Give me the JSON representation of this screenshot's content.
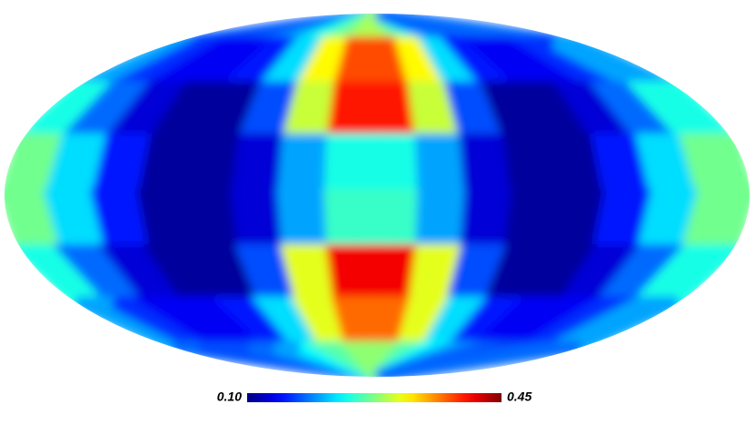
{
  "chart_data": {
    "type": "heatmap",
    "projection": "mollweide",
    "colormap": "jet",
    "clim": [
      {
        "value": 0.1,
        "label": "0.10"
      },
      {
        "value": 0.45,
        "label": "0.45"
      }
    ],
    "values": [
      [
        0.18,
        0.17,
        0.17,
        0.18,
        0.2,
        0.24,
        0.27,
        0.29,
        0.29,
        0.27,
        0.24,
        0.2,
        0.18,
        0.17,
        0.17,
        0.18
      ],
      [
        0.2,
        0.16,
        0.14,
        0.14,
        0.15,
        0.22,
        0.32,
        0.38,
        0.38,
        0.32,
        0.22,
        0.15,
        0.14,
        0.14,
        0.16,
        0.2
      ],
      [
        0.24,
        0.18,
        0.13,
        0.11,
        0.11,
        0.17,
        0.3,
        0.4,
        0.4,
        0.3,
        0.17,
        0.11,
        0.11,
        0.13,
        0.18,
        0.24
      ],
      [
        0.27,
        0.22,
        0.15,
        0.11,
        0.11,
        0.13,
        0.2,
        0.24,
        0.24,
        0.2,
        0.13,
        0.11,
        0.11,
        0.15,
        0.22,
        0.27
      ],
      [
        0.27,
        0.22,
        0.15,
        0.11,
        0.11,
        0.13,
        0.2,
        0.25,
        0.25,
        0.2,
        0.13,
        0.11,
        0.11,
        0.15,
        0.22,
        0.27
      ],
      [
        0.24,
        0.18,
        0.13,
        0.11,
        0.11,
        0.17,
        0.31,
        0.41,
        0.41,
        0.31,
        0.17,
        0.11,
        0.11,
        0.13,
        0.18,
        0.24
      ],
      [
        0.2,
        0.16,
        0.14,
        0.14,
        0.15,
        0.22,
        0.31,
        0.37,
        0.37,
        0.31,
        0.22,
        0.15,
        0.14,
        0.14,
        0.16,
        0.2
      ],
      [
        0.18,
        0.17,
        0.17,
        0.18,
        0.2,
        0.23,
        0.26,
        0.28,
        0.28,
        0.26,
        0.23,
        0.2,
        0.18,
        0.17,
        0.17,
        0.18
      ]
    ]
  }
}
